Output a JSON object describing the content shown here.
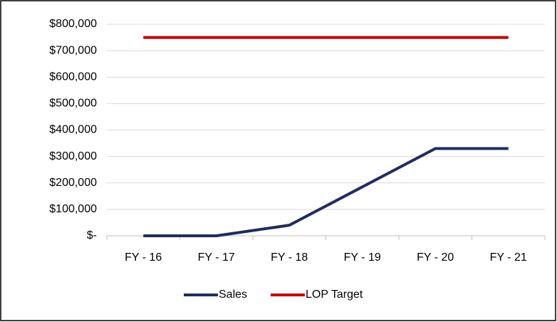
{
  "chart_data": {
    "type": "line",
    "categories": [
      "FY - 16",
      "FY - 17",
      "FY - 18",
      "FY - 19",
      "FY - 20",
      "FY - 21"
    ],
    "series": [
      {
        "name": "Sales",
        "color": "#1f2d5f",
        "values": [
          0,
          0,
          40000,
          185000,
          330000,
          330000
        ]
      },
      {
        "name": "LOP Target",
        "color": "#c00000",
        "values": [
          750000,
          750000,
          750000,
          750000,
          750000,
          750000
        ]
      }
    ],
    "ylim": [
      0,
      800000
    ],
    "yticks": [
      {
        "value": 0,
        "label": "$-"
      },
      {
        "value": 100000,
        "label": "$100,000"
      },
      {
        "value": 200000,
        "label": "$200,000"
      },
      {
        "value": 300000,
        "label": "$300,000"
      },
      {
        "value": 400000,
        "label": "$400,000"
      },
      {
        "value": 500000,
        "label": "$500,000"
      },
      {
        "value": 600000,
        "label": "$600,000"
      },
      {
        "value": 700000,
        "label": "$700,000"
      },
      {
        "value": 800000,
        "label": "$800,000"
      }
    ],
    "grid": true,
    "legend": "bottom"
  }
}
